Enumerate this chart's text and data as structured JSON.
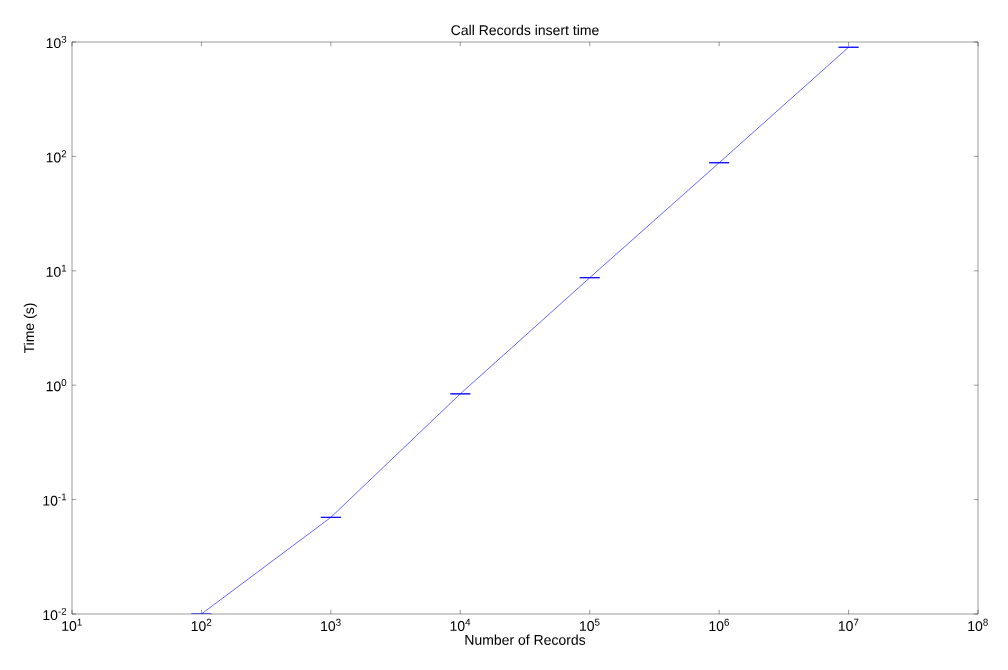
{
  "chart_data": {
    "type": "line",
    "title": "Call Records insert time",
    "xlabel": "Number of Records",
    "ylabel": "Time (s)",
    "x": [
      100,
      1000,
      10000,
      100000,
      1000000,
      10000000
    ],
    "series": [
      {
        "color": "#0000ff",
        "values": [
          0.01,
          0.07,
          0.84,
          8.7,
          88,
          900
        ],
        "errors": [
          0,
          0,
          0,
          0,
          0,
          0
        ]
      }
    ],
    "log": "xy",
    "xlim": [
      10,
      100000000
    ],
    "ylim": [
      0.01,
      1000
    ],
    "xticks": [
      {
        "value": 10,
        "label": "10$^{1}$"
      },
      {
        "value": 100,
        "label": "10$^{2}$"
      },
      {
        "value": 1000,
        "label": "10$^{3}$"
      },
      {
        "value": 10000,
        "label": "10$^{4}$"
      },
      {
        "value": 100000,
        "label": "10$^{5}$"
      },
      {
        "value": 1000000,
        "label": "10$^{6}$"
      },
      {
        "value": 10000000,
        "label": "10$^{7}$"
      },
      {
        "value": 100000000,
        "label": "10$^{8}$"
      }
    ],
    "yticks": [
      {
        "value": 0.01,
        "label": "10$^{-2}$"
      },
      {
        "value": 0.1,
        "label": "10$^{-1}$"
      },
      {
        "value": 1,
        "label": "10$^{0}$"
      },
      {
        "value": 10,
        "label": "10$^{1}$"
      },
      {
        "value": 100,
        "label": "10$^{2}$"
      },
      {
        "value": 1000,
        "label": "10$^{3}$"
      }
    ],
    "grid": false,
    "marker": "none",
    "line_style": "solid"
  }
}
